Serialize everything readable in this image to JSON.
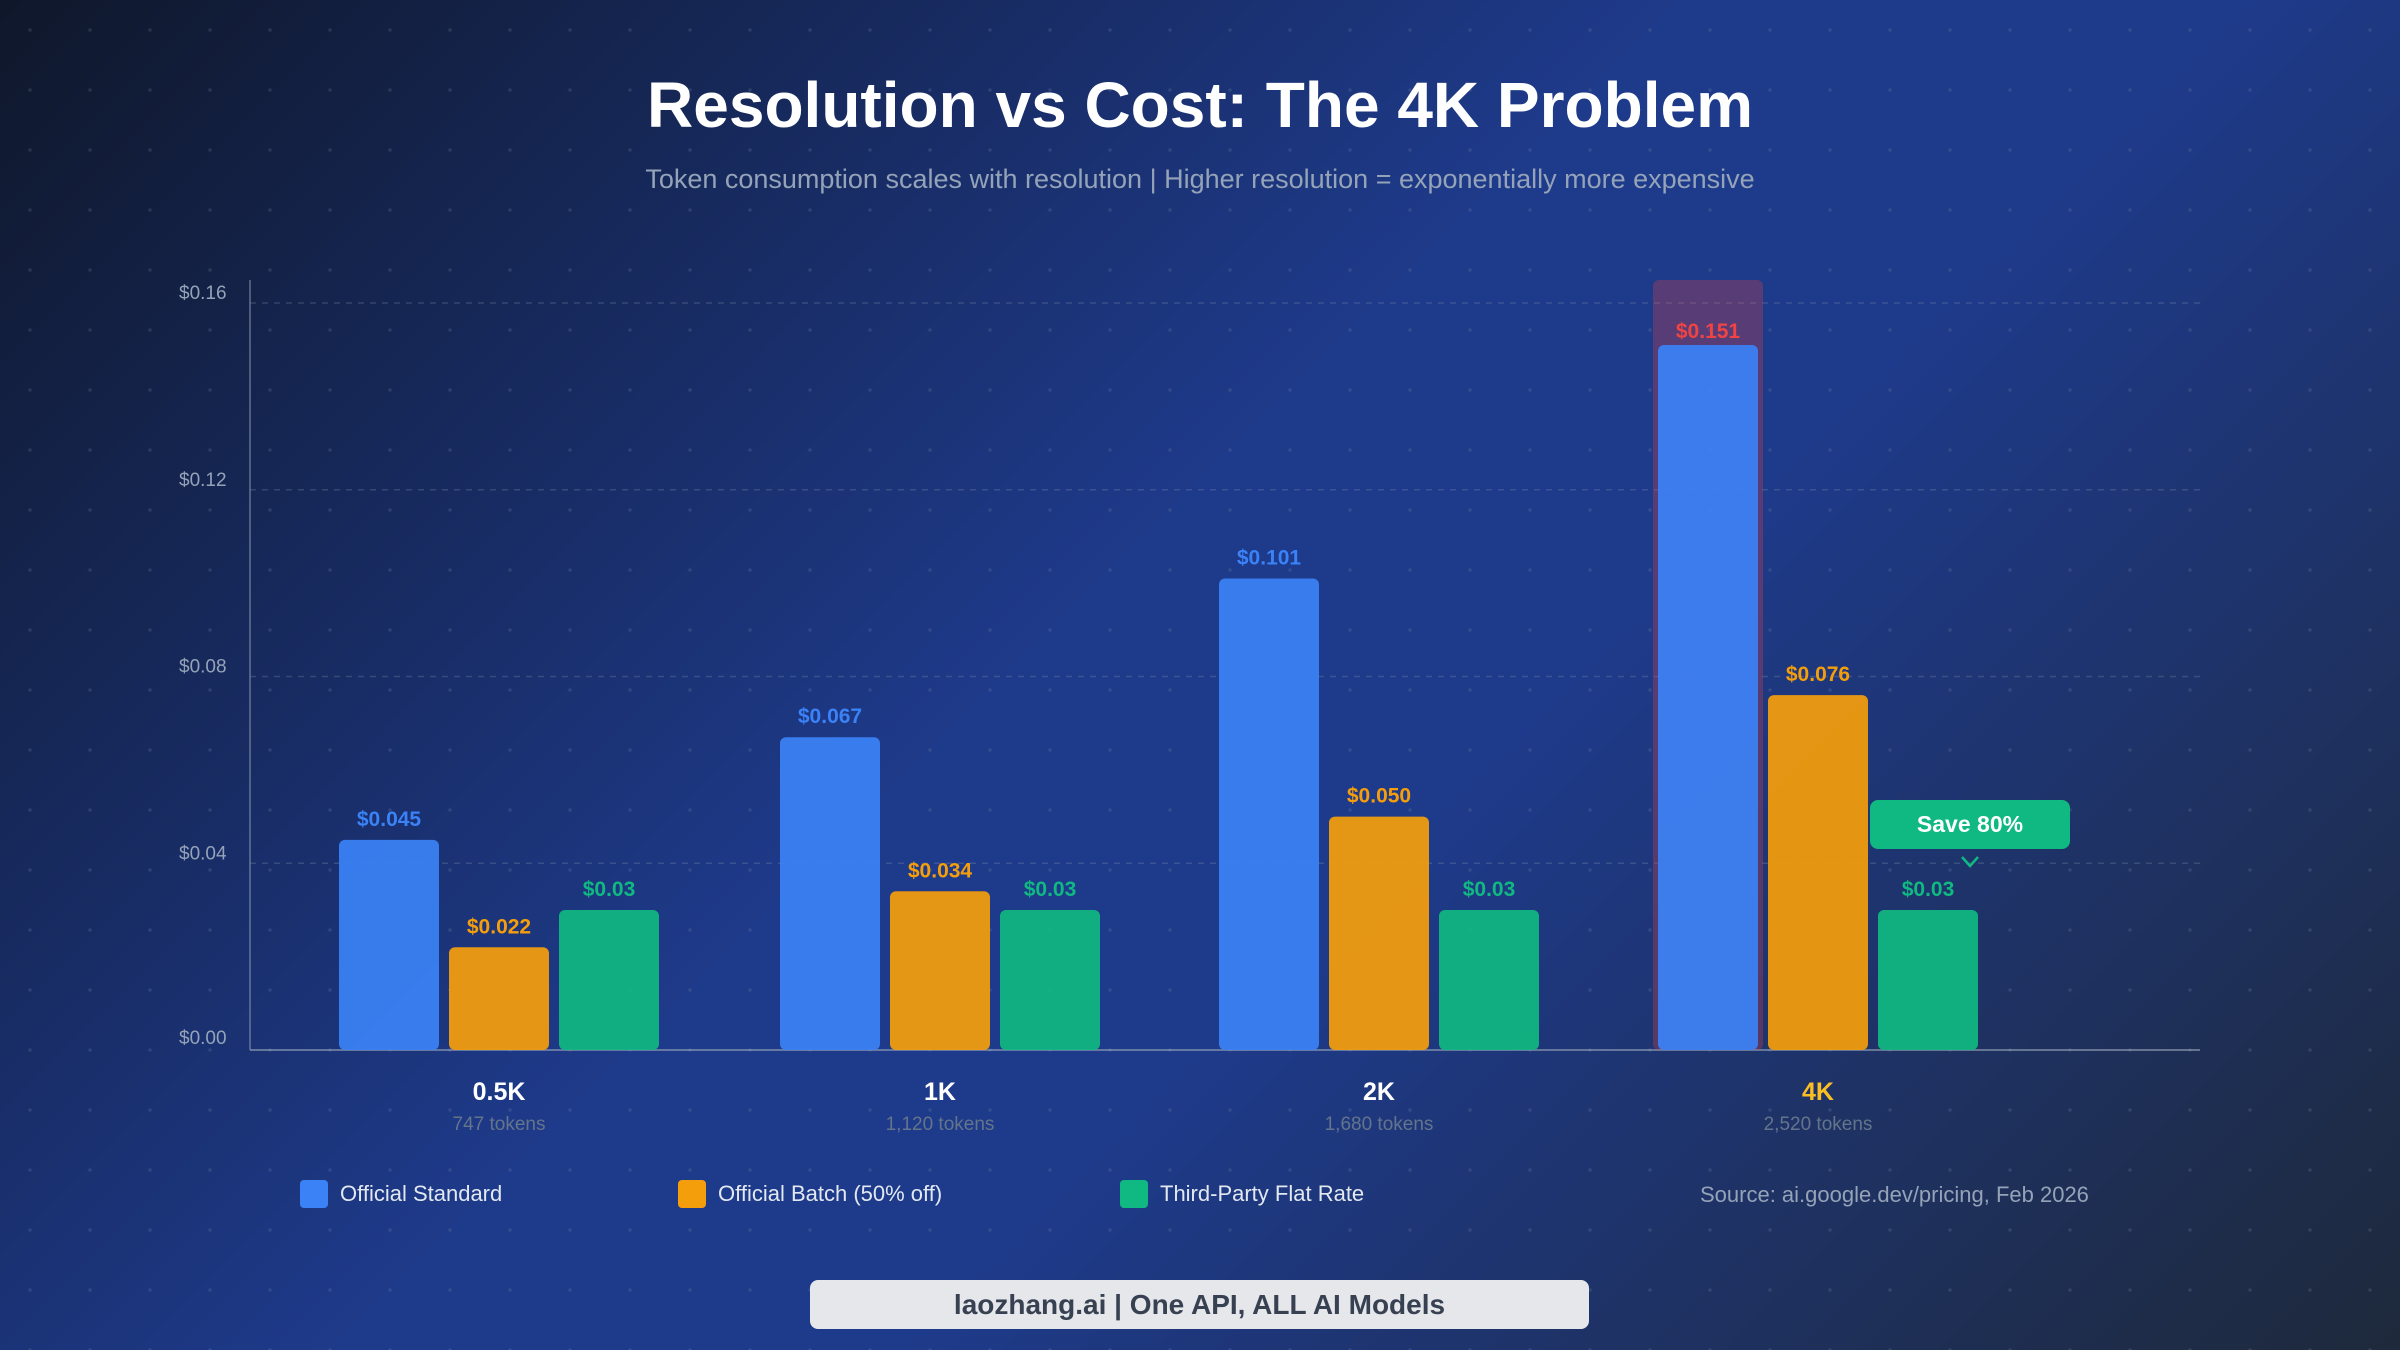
{
  "chart_data": {
    "type": "bar",
    "title": "Resolution vs Cost: The 4K Problem",
    "subtitle": "Token consumption scales with resolution | Higher resolution = exponentially more expensive",
    "categories": [
      "0.5K",
      "1K",
      "2K",
      "4K"
    ],
    "category_sublabels": [
      "747 tokens",
      "1,120 tokens",
      "1,680 tokens",
      "2,520 tokens"
    ],
    "series": [
      {
        "name": "Official Standard",
        "color": "#3b82f6",
        "values": [
          0.045,
          0.067,
          0.101,
          0.151
        ],
        "labels": [
          "$0.045",
          "$0.067",
          "$0.101",
          "$0.151"
        ]
      },
      {
        "name": "Official Batch (50% off)",
        "color": "#f59e0b",
        "values": [
          0.022,
          0.034,
          0.05,
          0.076
        ],
        "labels": [
          "$0.022",
          "$0.034",
          "$0.050",
          "$0.076"
        ]
      },
      {
        "name": "Third-Party Flat Rate",
        "color": "#10b981",
        "values": [
          0.03,
          0.03,
          0.03,
          0.03
        ],
        "labels": [
          "$0.03",
          "$0.03",
          "$0.03",
          "$0.03"
        ]
      }
    ],
    "ylim": [
      0,
      0.16
    ],
    "yticks": [
      0,
      0.04,
      0.08,
      0.12,
      0.16
    ],
    "ytick_labels": [
      "$0.00",
      "$0.04",
      "$0.08",
      "$0.12",
      "$0.16"
    ],
    "grid": true,
    "legend": "bottom",
    "highlight": {
      "category": "4K",
      "series": "Official Standard",
      "label_color": "#ef4444"
    },
    "callout": {
      "text": "Save 80%",
      "category": "4K",
      "color": "#10b981"
    },
    "highlight_category_color": "#fbbf24"
  },
  "source": "Source: ai.google.dev/pricing, Feb 2026",
  "footer": "laozhang.ai | One API, ALL AI Models"
}
